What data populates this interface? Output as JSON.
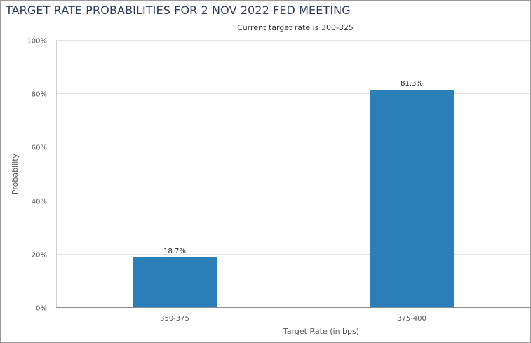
{
  "chart_data": {
    "type": "bar",
    "title": "TARGET RATE PROBABILITIES FOR 2 NOV 2022 FED MEETING",
    "subtitle": "Current target rate is 300-325",
    "xlabel": "Target Rate (in bps)",
    "ylabel": "Probability",
    "categories": [
      "350-375",
      "375-400"
    ],
    "values": [
      18.7,
      81.3
    ],
    "data_labels": [
      "18.7%",
      "81.3%"
    ],
    "ylim": [
      0,
      100
    ],
    "y_ticks": [
      0,
      20,
      40,
      60,
      80,
      100
    ],
    "y_tick_labels": [
      "0%",
      "20%",
      "40%",
      "60%",
      "80%",
      "100%"
    ],
    "grid": true,
    "legend": "none",
    "colors": {
      "bar": "#2a7fb8",
      "grid": "#e3e3e3",
      "axis_text": "#555555",
      "title_text": "#2f3b52",
      "label_text": "#222222"
    }
  }
}
